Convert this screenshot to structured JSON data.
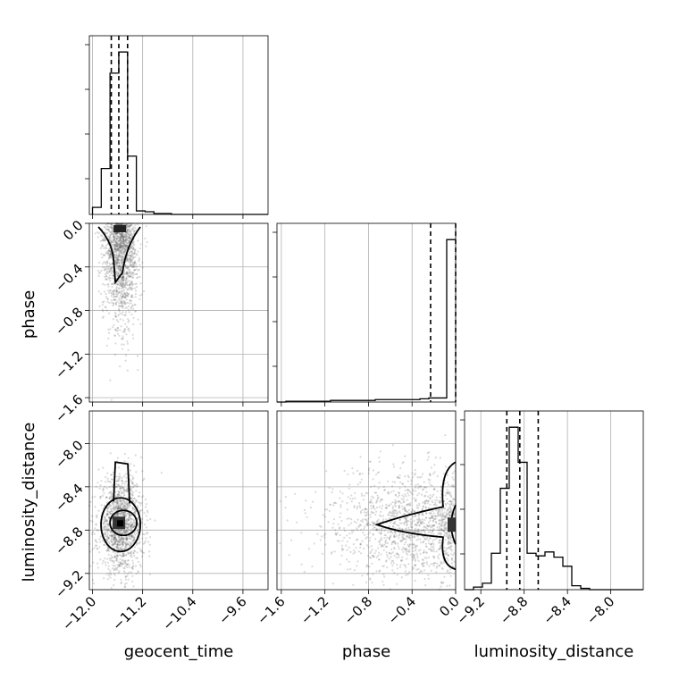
{
  "chart_data": {
    "type": "corner",
    "parameters": [
      "geocent_time",
      "phase",
      "luminosity_distance"
    ],
    "ranges": {
      "geocent_time": [
        -12.05,
        -9.2
      ],
      "phase": [
        -1.64,
        0.0
      ],
      "luminosity_distance": [
        -9.35,
        -7.7
      ]
    },
    "ticks": {
      "geocent_time": [
        "−12.0",
        "−11.2",
        "−10.4",
        "−9.6"
      ],
      "phase": [
        "−1.6",
        "−1.2",
        "−0.8",
        "−0.4",
        "0.0"
      ],
      "luminosity_distance": [
        "−9.2",
        "−8.8",
        "−8.4",
        "−8.0"
      ]
    },
    "tick_values": {
      "geocent_time": [
        -12.0,
        -11.2,
        -10.4,
        -9.6
      ],
      "phase": [
        -1.6,
        -1.2,
        -0.8,
        -0.4,
        0.0
      ],
      "luminosity_distance": [
        -9.2,
        -8.8,
        -8.4,
        -8.0
      ]
    },
    "quantiles": {
      "geocent_time": [
        -11.7,
        -11.58,
        -11.44
      ],
      "phase": [
        -0.23,
        0.0
      ],
      "luminosity_distance": [
        -8.96,
        -8.84,
        -8.67
      ]
    },
    "histograms": {
      "geocent_time": {
        "edges": [
          -12.0,
          -11.86,
          -11.72,
          -11.58,
          -11.44,
          -11.3,
          -11.16,
          -11.02,
          -10.88,
          -10.74,
          -10.6,
          -10.46,
          -10.32,
          -10.18,
          -10.04,
          -9.9,
          -9.76,
          -9.62,
          -9.48,
          -9.34,
          -9.2
        ],
        "counts": [
          8,
          52,
          160,
          184,
          66,
          4,
          3,
          1,
          1,
          0,
          0,
          0,
          0,
          0,
          0,
          0,
          0,
          0,
          0,
          0
        ]
      },
      "phase": {
        "edges": [
          -1.64,
          -1.558,
          -1.476,
          -1.394,
          -1.312,
          -1.23,
          -1.148,
          -1.066,
          -0.984,
          -0.902,
          -0.82,
          -0.738,
          -0.656,
          -0.574,
          -0.492,
          -0.41,
          -0.328,
          -0.246,
          -0.164,
          -0.082,
          0.0
        ],
        "counts": [
          0,
          1,
          1,
          1,
          1,
          1,
          2,
          2,
          2,
          2,
          2,
          3,
          3,
          3,
          3,
          3,
          4,
          5,
          5,
          200
        ]
      },
      "luminosity_distance": {
        "edges": [
          -9.35,
          -9.2675,
          -9.185,
          -9.1025,
          -9.02,
          -8.9375,
          -8.855,
          -8.7725,
          -8.69,
          -8.6075,
          -8.525,
          -8.4425,
          -8.36,
          -8.2775,
          -8.195,
          -8.1125,
          -8.03,
          -7.9475,
          -7.865,
          -7.7825,
          -7.7
        ],
        "counts": [
          0,
          2,
          5,
          28,
          78,
          125,
          98,
          28,
          26,
          29,
          25,
          18,
          3,
          1,
          0,
          0,
          0,
          0,
          0,
          0
        ]
      }
    },
    "scatter_clouds": {
      "geocent_time__phase": {
        "center": [
          -11.55,
          -0.35
        ],
        "spread": [
          0.14,
          0.32
        ]
      },
      "geocent_time__luminosity_distance": {
        "center": [
          -11.55,
          -8.75
        ],
        "spread": [
          0.18,
          0.22
        ]
      },
      "phase__luminosity_distance": {
        "center": [
          -0.2,
          -8.75
        ],
        "spread": [
          0.4,
          0.25
        ]
      }
    },
    "grid": true
  }
}
